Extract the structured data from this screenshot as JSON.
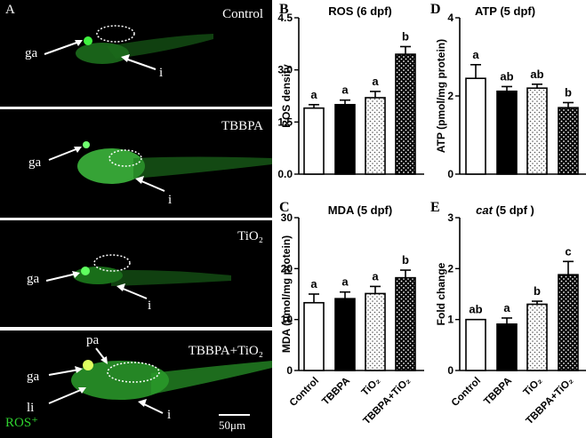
{
  "panel_a": {
    "letter": "A",
    "photos": [
      {
        "condition": "Control",
        "labels": [
          "ga",
          "i"
        ]
      },
      {
        "condition": "TBBPA",
        "labels": [
          "ga",
          "i"
        ]
      },
      {
        "condition": "TiO₂",
        "labels": [
          "ga",
          "i"
        ]
      },
      {
        "condition": "TBBPA+TiO₂",
        "labels": [
          "pa",
          "ga",
          "li",
          "i"
        ]
      }
    ],
    "legend": "ROS⁺",
    "scale_bar": "50μm",
    "colors": {
      "background": "#000000",
      "fluorescence": "#2fd12f"
    }
  },
  "chart_data": [
    {
      "panel": "B",
      "type": "bar",
      "title": "ROS (6 dpf)",
      "xlabel": "",
      "ylabel": "ROS density",
      "categories": [
        "Control",
        "TBBPA",
        "TiO₂",
        "TBBPA+TiO₂"
      ],
      "values": [
        1.9,
        2.0,
        2.2,
        3.45
      ],
      "errors": [
        0.1,
        0.13,
        0.18,
        0.22
      ],
      "letters": [
        "a",
        "a",
        "a",
        "b"
      ],
      "ylim": [
        0,
        4.5
      ],
      "yticks": [
        "0.0",
        "1.5",
        "3.0",
        "4.5"
      ],
      "show_xticklabels": false
    },
    {
      "panel": "C",
      "type": "bar",
      "title": "MDA (5 dpf)",
      "xlabel": "",
      "ylabel": "MDA (μmol/mg protein)",
      "categories": [
        "Control",
        "TBBPA",
        "TiO₂",
        "TBBPA+TiO₂"
      ],
      "values": [
        13.3,
        14.1,
        15.1,
        18.2
      ],
      "errors": [
        1.7,
        1.3,
        1.4,
        1.5
      ],
      "letters": [
        "a",
        "a",
        "a",
        "b"
      ],
      "ylim": [
        0,
        30
      ],
      "yticks": [
        "0",
        "10",
        "20",
        "30"
      ],
      "show_xticklabels": true
    },
    {
      "panel": "D",
      "type": "bar",
      "title": "ATP (5 dpf)",
      "xlabel": "",
      "ylabel": "ATP (pmol/mg protein)",
      "categories": [
        "Control",
        "TBBPA",
        "TiO₂",
        "TBBPA+TiO₂"
      ],
      "values": [
        2.45,
        2.12,
        2.2,
        1.7
      ],
      "errors": [
        0.35,
        0.12,
        0.1,
        0.13
      ],
      "letters": [
        "a",
        "ab",
        "ab",
        "b"
      ],
      "ylim": [
        0,
        4
      ],
      "yticks": [
        "0",
        "2",
        "4"
      ],
      "show_xticklabels": false
    },
    {
      "panel": "E",
      "type": "bar",
      "title": "cat (5 dpf )",
      "xlabel": "",
      "ylabel": "Fold change",
      "categories": [
        "Control",
        "TBBPA",
        "TiO₂",
        "TBBPA+TiO₂"
      ],
      "values": [
        1.0,
        0.91,
        1.3,
        1.88
      ],
      "errors": [
        0.0,
        0.12,
        0.06,
        0.26
      ],
      "letters": [
        "ab",
        "a",
        "b",
        "c"
      ],
      "ylim": [
        0,
        3
      ],
      "yticks": [
        "0",
        "1",
        "2",
        "3"
      ],
      "show_xticklabels": true
    }
  ],
  "bar_styles": [
    "white",
    "black",
    "dotted",
    "black-dotted"
  ]
}
